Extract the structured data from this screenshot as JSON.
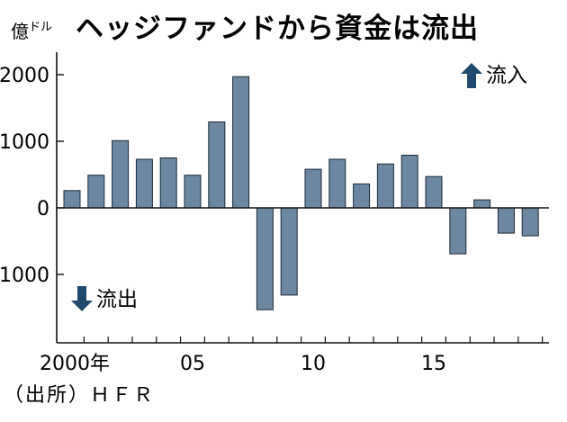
{
  "title": "ヘッジファンドから資金は流出",
  "unit": {
    "main": "億",
    "sub": "ドル"
  },
  "source": "（出所）ＨＦＲ",
  "annotations": {
    "inflow": "流入",
    "outflow": "流出"
  },
  "colors": {
    "bar": "#6d87a0",
    "arrow": "#1f4a6e",
    "axis": "#111111"
  },
  "chart_data": {
    "type": "bar",
    "categories": [
      "2000",
      "2001",
      "2002",
      "2003",
      "2004",
      "2005",
      "2006",
      "2007",
      "2008",
      "2009",
      "2010",
      "2011",
      "2012",
      "2013",
      "2014",
      "2015",
      "2016",
      "2017",
      "2018",
      "2019"
    ],
    "values": [
      260,
      490,
      1010,
      730,
      750,
      490,
      1290,
      1970,
      -1530,
      -1310,
      580,
      730,
      360,
      660,
      790,
      470,
      -690,
      120,
      -380,
      -420
    ],
    "yticks": [
      2000,
      1000,
      0,
      -1000
    ],
    "ytick_labels": [
      "2000",
      "1000",
      "0",
      "-1000"
    ],
    "xticks": [
      {
        "index": 0,
        "label": "2000年"
      },
      {
        "index": 5,
        "label": "05"
      },
      {
        "index": 10,
        "label": "10"
      },
      {
        "index": 15,
        "label": "15"
      }
    ],
    "ylim": [
      -1950,
      2150
    ],
    "grid": false
  }
}
